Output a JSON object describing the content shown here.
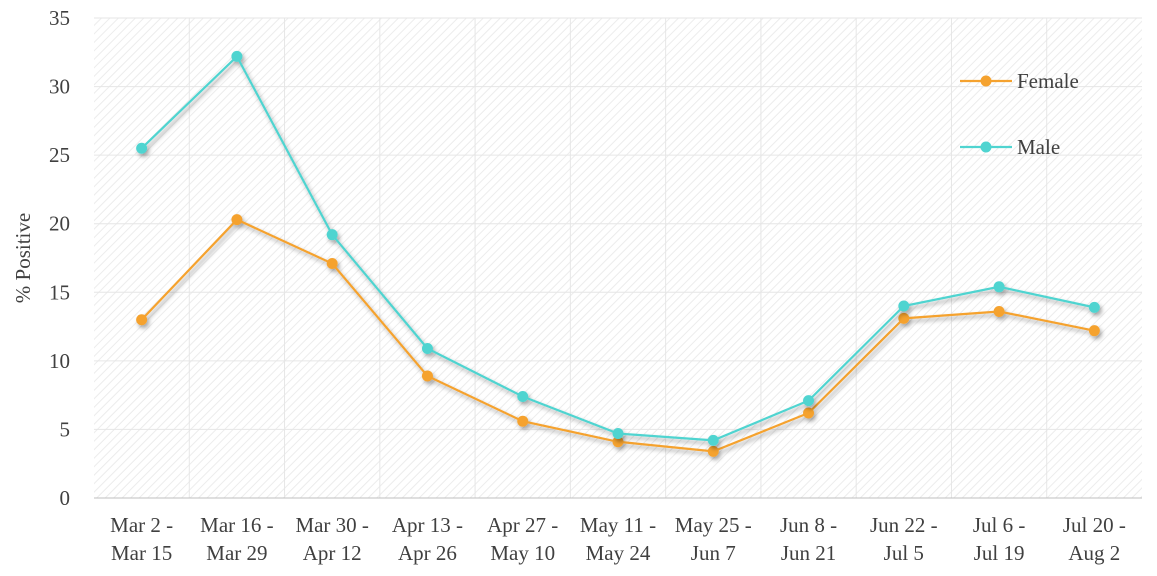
{
  "chart_data": {
    "type": "line",
    "title": "",
    "xlabel": "",
    "ylabel": "% Positive",
    "ylim": [
      0,
      35
    ],
    "yticks": [
      0,
      5,
      10,
      15,
      20,
      25,
      30,
      35
    ],
    "grid": true,
    "legend_position": "top-right",
    "categories": [
      [
        "Mar 2 -",
        "Mar 15"
      ],
      [
        "Mar 16 -",
        "Mar 29"
      ],
      [
        "Mar 30 -",
        "Apr 12"
      ],
      [
        "Apr 13 -",
        "Apr 26"
      ],
      [
        "Apr 27 -",
        "May 10"
      ],
      [
        "May 11 -",
        "May 24"
      ],
      [
        "May 25 -",
        "Jun 7"
      ],
      [
        "Jun 8 -",
        "Jun 21"
      ],
      [
        "Jun 22 -",
        "Jul 5"
      ],
      [
        "Jul 6 -",
        "Jul 19"
      ],
      [
        "Jul 20 -",
        "Aug 2"
      ]
    ],
    "series": [
      {
        "name": "Female",
        "color": "#F5A22F",
        "values": [
          13.0,
          20.3,
          17.1,
          8.9,
          5.6,
          4.1,
          3.4,
          6.2,
          13.1,
          13.6,
          12.2
        ]
      },
      {
        "name": "Male",
        "color": "#4FD4D0",
        "values": [
          25.5,
          32.2,
          19.2,
          10.9,
          7.4,
          4.7,
          4.2,
          7.1,
          14.0,
          15.4,
          13.9
        ]
      }
    ]
  }
}
